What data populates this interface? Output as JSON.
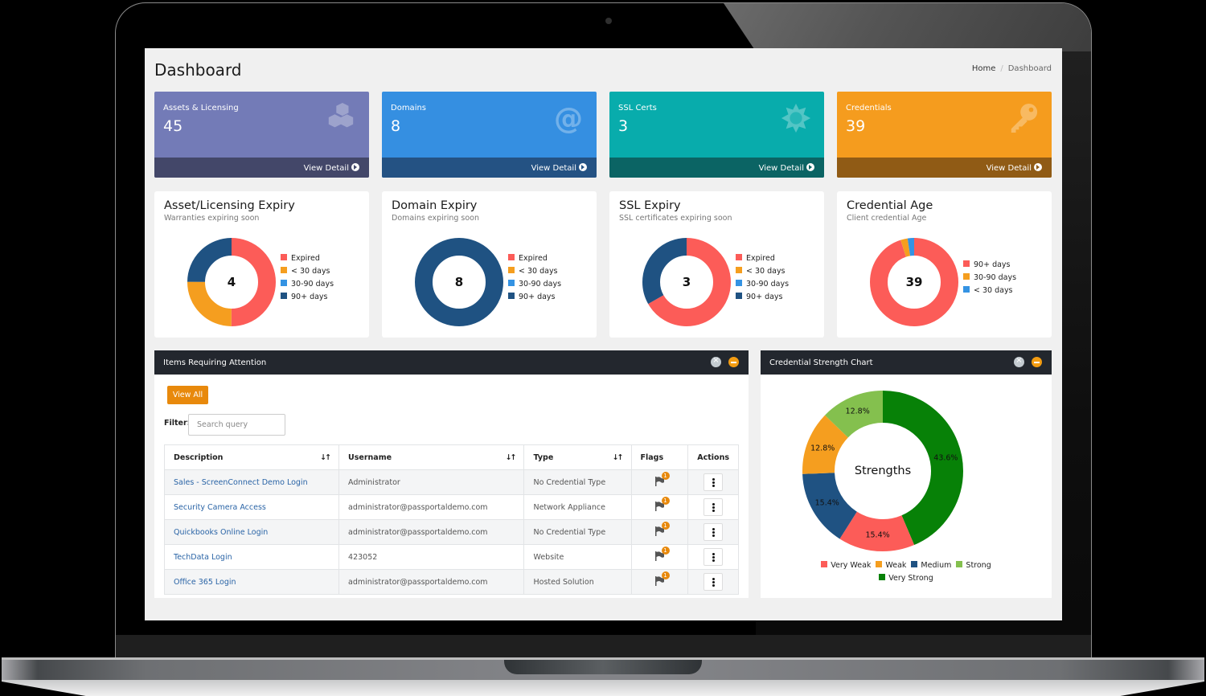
{
  "page": {
    "title": "Dashboard",
    "breadcrumb": [
      {
        "label": "Home"
      },
      {
        "label": "Dashboard"
      }
    ]
  },
  "colors": {
    "expired": "#fc5c58",
    "lt30": "#f59e1f",
    "d30_90": "#3493e3",
    "d90plus": "#1f5282",
    "very_weak": "#fc5c58",
    "weak": "#f59e1f",
    "medium": "#1f5282",
    "strong": "#84c04e",
    "very_strong": "#078107"
  },
  "stats": [
    {
      "label": "Assets & Licensing",
      "value": "45",
      "icon": "cubes-icon",
      "link": "View Detail",
      "bg": "#737bb7",
      "footer_bg": "#434769"
    },
    {
      "label": "Domains",
      "value": "8",
      "icon": "at-icon",
      "link": "View Detail",
      "bg": "#358fe1",
      "footer_bg": "#245283"
    },
    {
      "label": "SSL Certs",
      "value": "3",
      "icon": "sun-icon",
      "link": "View Detail",
      "bg": "#08acac",
      "footer_bg": "#0b6464"
    },
    {
      "label": "Credentials",
      "value": "39",
      "icon": "key-icon",
      "link": "View Detail",
      "bg": "#f59c1e",
      "footer_bg": "#905b15"
    }
  ],
  "chart_data": [
    {
      "type": "pie",
      "title": "Asset/Licensing Expiry",
      "subtitle": "Warranties expiring soon",
      "center": "4",
      "categories": [
        "Expired",
        "< 30 days",
        "30-90 days",
        "90+ days"
      ],
      "values": [
        2,
        1,
        0,
        1
      ],
      "colors": [
        "#fc5c58",
        "#f59e1f",
        "#3493e3",
        "#1f5282"
      ],
      "legend_position": "right"
    },
    {
      "type": "pie",
      "title": "Domain Expiry",
      "subtitle": "Domains expiring soon",
      "center": "8",
      "categories": [
        "Expired",
        "< 30 days",
        "30-90 days",
        "90+ days"
      ],
      "values": [
        0,
        0,
        0,
        8
      ],
      "colors": [
        "#fc5c58",
        "#f59e1f",
        "#3493e3",
        "#1f5282"
      ],
      "legend_position": "right"
    },
    {
      "type": "pie",
      "title": "SSL Expiry",
      "subtitle": "SSL certificates expiring soon",
      "center": "3",
      "categories": [
        "Expired",
        "< 30 days",
        "30-90 days",
        "90+ days"
      ],
      "values": [
        2,
        0,
        0,
        1
      ],
      "colors": [
        "#fc5c58",
        "#f59e1f",
        "#3493e3",
        "#1f5282"
      ],
      "legend_position": "right"
    },
    {
      "type": "pie",
      "title": "Credential Age",
      "subtitle": "Client credential Age",
      "center": "39",
      "categories": [
        "90+ days",
        "30-90 days",
        "< 30 days"
      ],
      "values": [
        37,
        1,
        1
      ],
      "colors": [
        "#fc5c58",
        "#f59e1f",
        "#3493e3"
      ],
      "legend_position": "right"
    },
    {
      "type": "pie",
      "title": "Credential Strength Chart",
      "center": "Strengths",
      "categories": [
        "Very Weak",
        "Weak",
        "Medium",
        "Strong",
        "Very Strong"
      ],
      "values": [
        6,
        5,
        6,
        5,
        17
      ],
      "percent_labels": [
        "15.4%",
        "12.8%",
        "15.4%",
        "12.8%",
        "43.6%"
      ],
      "colors": [
        "#fc5c58",
        "#f59e1f",
        "#1f5282",
        "#84c04e",
        "#078107"
      ],
      "draw_order": [
        4,
        0,
        2,
        1,
        3
      ],
      "legend_position": "bottom"
    }
  ],
  "attention": {
    "title": "Items Requiring Attention",
    "view_all": "View All",
    "filter_label": "Filter:",
    "search_placeholder": "Search query",
    "columns": [
      "Description",
      "Username",
      "Type",
      "Flags",
      "Actions"
    ],
    "rows": [
      {
        "description": "Sales - ScreenConnect Demo Login",
        "username": "Administrator",
        "type": "No Credential Type",
        "flags": "1"
      },
      {
        "description": "Security Camera Access",
        "username": "administrator@passportaldemo.com",
        "type": "Network Appliance",
        "flags": "1"
      },
      {
        "description": "Quickbooks Online Login",
        "username": "administrator@passportaldemo.com",
        "type": "No Credential Type",
        "flags": "1"
      },
      {
        "description": "TechData Login",
        "username": "423052",
        "type": "Website",
        "flags": "1"
      },
      {
        "description": "Office 365 Login",
        "username": "administrator@passportaldemo.com",
        "type": "Hosted Solution",
        "flags": "1"
      }
    ]
  },
  "strength_panel": {
    "title": "Credential Strength Chart"
  }
}
